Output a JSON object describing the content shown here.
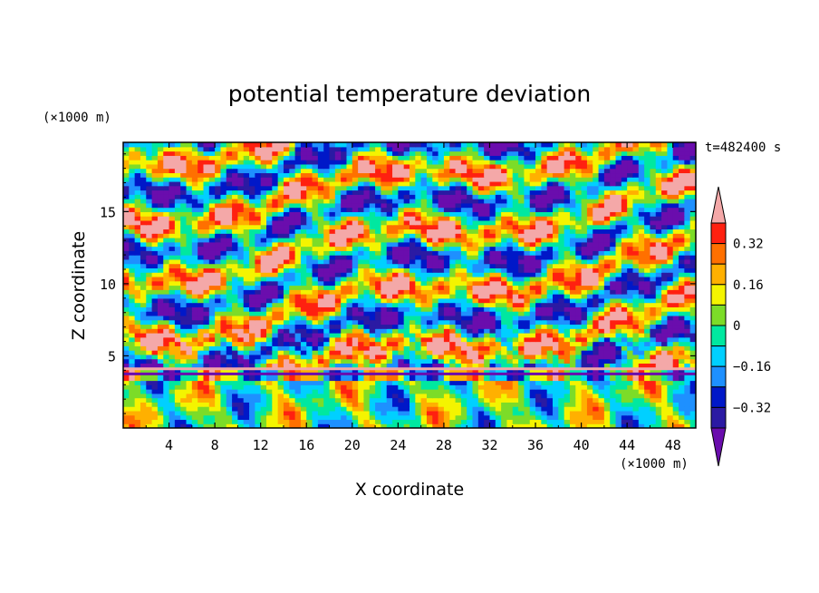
{
  "chart_data": {
    "type": "heatmap",
    "title": "potential temperature deviation",
    "xlabel": "X coordinate",
    "ylabel": "Z coordinate",
    "x_unit": "(×1000 m)",
    "y_unit": "(×1000 m)",
    "time_label": "t=482400 s",
    "xlim": [
      0,
      50
    ],
    "ylim": [
      0,
      19.8
    ],
    "x_ticks": [
      4,
      8,
      12,
      16,
      20,
      24,
      28,
      32,
      36,
      40,
      44,
      48
    ],
    "x_tick_labels": [
      "4",
      "8",
      "12",
      "16",
      "20",
      "24",
      "28",
      "32",
      "36",
      "40",
      "44",
      "48"
    ],
    "y_ticks": [
      5,
      10,
      15
    ],
    "y_tick_labels": [
      "5",
      "10",
      "15"
    ],
    "colorbar": {
      "levels": [
        -0.4,
        -0.32,
        -0.24,
        -0.16,
        -0.08,
        0,
        0.08,
        0.16,
        0.24,
        0.32,
        0.4
      ],
      "labels": [
        "0.32",
        "0.16",
        "0",
        "−0.16",
        "−0.32"
      ],
      "label_values": [
        0.32,
        0.16,
        0,
        -0.16,
        -0.32
      ],
      "colors": [
        "#6a0dad",
        "#2b1aa3",
        "#0018c8",
        "#1e90ff",
        "#00d0ff",
        "#00e8a0",
        "#7cdc28",
        "#f4f400",
        "#ffb000",
        "#ff7000",
        "#ff2010",
        "#f4a8a8"
      ]
    },
    "inversion_layer_z": 4.1
  }
}
